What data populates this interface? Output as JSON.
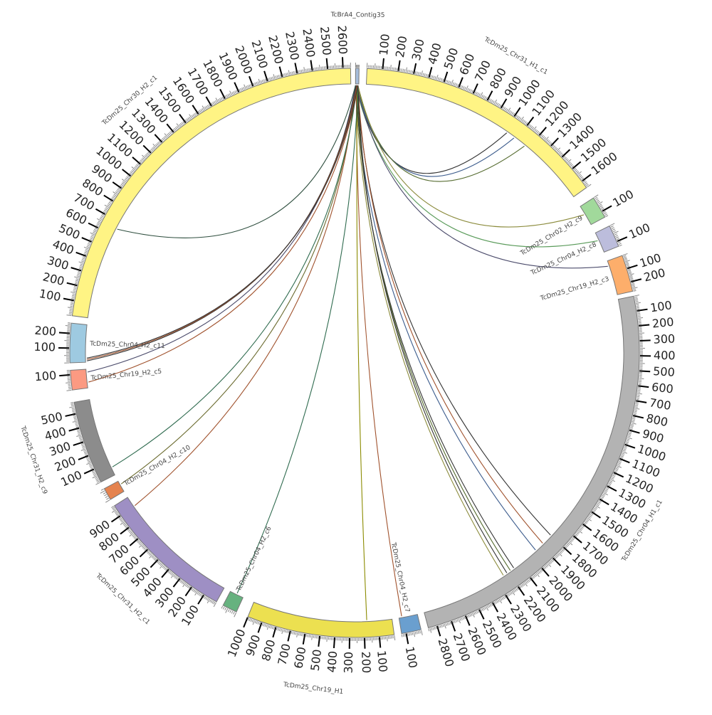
{
  "chart_data": {
    "type": "chord",
    "title": "",
    "tick_interval": 100,
    "segments": [
      {
        "name": "TcBrA4_Contig35",
        "length": 40,
        "color": "#a6bddb"
      },
      {
        "name": "TcDm25_Chr31_H1_c1",
        "length": 1650,
        "color": "#fff484"
      },
      {
        "name": "TcDm25_Chr02_H2_c9",
        "length": 140,
        "color": "#a1d99b"
      },
      {
        "name": "TcDm25_Chr04_H2_c8",
        "length": 130,
        "color": "#bcbddc"
      },
      {
        "name": "TcDm25_Chr19_H2_c3",
        "length": 270,
        "color": "#fdae6b"
      },
      {
        "name": "TcDm25_Chr04_H1_c1",
        "length": 2860,
        "color": "#b3b3b3"
      },
      {
        "name": "TcDm25_Chr04_H2_c7",
        "length": 130,
        "color": "#6a9fcf"
      },
      {
        "name": "TcDm25_Chr19_H1",
        "length": 1000,
        "color": "#ece050"
      },
      {
        "name": "TcDm25_Chr04_H2_c6",
        "length": 80,
        "color": "#66b27f"
      },
      {
        "name": "TcDm25_Chr31_H2_c1",
        "length": 980,
        "color": "#9e8fc4"
      },
      {
        "name": "TcDm25_Chr04_H2_c10",
        "length": 60,
        "color": "#e5834f"
      },
      {
        "name": "TcDm25_Chr31_H2_c9",
        "length": 580,
        "color": "#8c8c8c"
      },
      {
        "name": "TcDm25_Chr19_H2_c5",
        "length": 130,
        "color": "#fb9a82"
      },
      {
        "name": "TcDm25_Chr04_H2_c11",
        "length": 270,
        "color": "#9ecae1"
      },
      {
        "name": "TcDm25_Chr30_H2_c1",
        "length": 2650,
        "color": "#fff484"
      }
    ],
    "links": [
      {
        "source": "TcBrA4_Contig35",
        "target": "TcDm25_Chr31_H1_c1",
        "pos": 1020,
        "color": "#333333"
      },
      {
        "source": "TcBrA4_Contig35",
        "target": "TcDm25_Chr31_H1_c1",
        "pos": 1080,
        "color": "#3b5b8c"
      },
      {
        "source": "TcBrA4_Contig35",
        "target": "TcDm25_Chr31_H1_c1",
        "pos": 1170,
        "color": "#556b2f"
      },
      {
        "source": "TcBrA4_Contig35",
        "target": "TcDm25_Chr02_H2_c9",
        "pos": 60,
        "color": "#8b8b3c"
      },
      {
        "source": "TcBrA4_Contig35",
        "target": "TcDm25_Chr04_H2_c8",
        "pos": 50,
        "color": "#5a9b5a"
      },
      {
        "source": "TcBrA4_Contig35",
        "target": "TcDm25_Chr19_H2_c3",
        "pos": 40,
        "color": "#4b4b6b"
      },
      {
        "source": "TcBrA4_Contig35",
        "target": "TcDm25_Chr04_H1_c1",
        "pos": 1800,
        "color": "#333333"
      },
      {
        "source": "TcBrA4_Contig35",
        "target": "TcDm25_Chr04_H1_c1",
        "pos": 1880,
        "color": "#a0522d"
      },
      {
        "source": "TcBrA4_Contig35",
        "target": "TcDm25_Chr04_H1_c1",
        "pos": 1950,
        "color": "#3b5b8c"
      },
      {
        "source": "TcBrA4_Contig35",
        "target": "TcDm25_Chr04_H1_c1",
        "pos": 2150,
        "color": "#333333"
      },
      {
        "source": "TcBrA4_Contig35",
        "target": "TcDm25_Chr04_H1_c1",
        "pos": 2180,
        "color": "#556b2f"
      },
      {
        "source": "TcBrA4_Contig35",
        "target": "TcDm25_Chr04_H1_c1",
        "pos": 2210,
        "color": "#333333"
      },
      {
        "source": "TcBrA4_Contig35",
        "target": "TcDm25_Chr04_H1_c1",
        "pos": 2240,
        "color": "#8b8b3c"
      },
      {
        "source": "TcBrA4_Contig35",
        "target": "TcDm25_Chr04_H2_c7",
        "pos": 110,
        "color": "#a0522d"
      },
      {
        "source": "TcBrA4_Contig35",
        "target": "TcDm25_Chr19_H1",
        "pos": 180,
        "color": "#8b8b00"
      },
      {
        "source": "TcBrA4_Contig35",
        "target": "TcDm25_Chr04_H2_c6",
        "pos": 40,
        "color": "#2f6b4f"
      },
      {
        "source": "TcBrA4_Contig35",
        "target": "TcDm25_Chr31_H2_c1",
        "pos": 900,
        "color": "#a0522d"
      },
      {
        "source": "TcBrA4_Contig35",
        "target": "TcDm25_Chr04_H2_c10",
        "pos": 40,
        "color": "#6b6b2f"
      },
      {
        "source": "TcBrA4_Contig35",
        "target": "TcDm25_Chr31_H2_c9",
        "pos": 60,
        "color": "#2f6b4f"
      },
      {
        "source": "TcBrA4_Contig35",
        "target": "TcDm25_Chr19_H2_c5",
        "pos": 40,
        "color": "#a0522d"
      },
      {
        "source": "TcBrA4_Contig35",
        "target": "TcDm25_Chr19_H2_c5",
        "pos": 110,
        "color": "#4b4b6b"
      },
      {
        "source": "TcBrA4_Contig35",
        "target": "TcDm25_Chr04_H2_c11",
        "pos": 10,
        "color": "#333333"
      },
      {
        "source": "TcBrA4_Contig35",
        "target": "TcDm25_Chr04_H2_c11",
        "pos": 20,
        "color": "#a0522d"
      },
      {
        "source": "TcBrA4_Contig35",
        "target": "TcDm25_Chr04_H2_c11",
        "pos": 30,
        "color": "#333333"
      },
      {
        "source": "TcBrA4_Contig35",
        "target": "TcDm25_Chr30_H2_c1",
        "pos": 650,
        "color": "#2f4f3f"
      }
    ]
  }
}
